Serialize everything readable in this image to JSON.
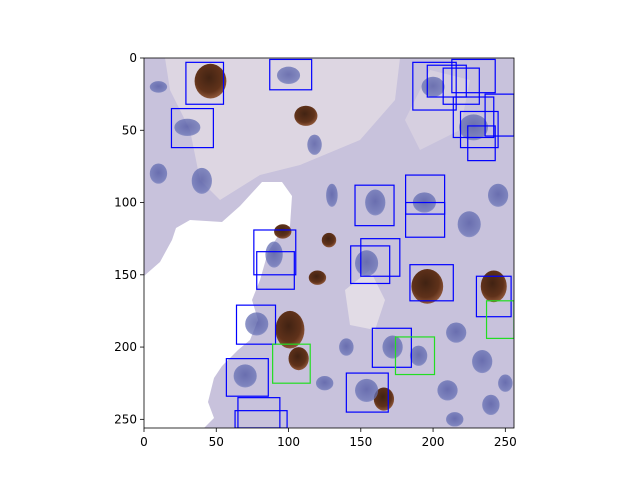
{
  "image": {
    "width": 256,
    "height": 256,
    "description_tag": "microscopy-tissue-patch",
    "colors": {
      "background_stain": "#c8c2dc",
      "empty_region": "#ffffff",
      "nucleus_blue": "#5a64a8",
      "nucleus_brown": "#5a2a10",
      "box_blue": "#0000ff",
      "box_green": "#22dd22"
    }
  },
  "axes": {
    "x_ticks": [
      "0",
      "50",
      "100",
      "150",
      "200",
      "250"
    ],
    "y_ticks": [
      "0",
      "50",
      "100",
      "150",
      "200",
      "250"
    ],
    "x_tick_values": [
      0,
      50,
      100,
      150,
      200,
      250
    ],
    "y_tick_values": [
      0,
      50,
      100,
      150,
      200,
      250
    ],
    "xlim": [
      0,
      256
    ],
    "ylim": [
      256,
      0
    ]
  },
  "annotations": [
    {
      "label": "blue",
      "x0": 29,
      "y0": 3,
      "x1": 55,
      "y1": 32
    },
    {
      "label": "blue",
      "x0": 87,
      "y0": 1,
      "x1": 116,
      "y1": 22
    },
    {
      "label": "blue",
      "x0": 19,
      "y0": 35,
      "x1": 48,
      "y1": 62
    },
    {
      "label": "blue",
      "x0": 186,
      "y0": 3,
      "x1": 216,
      "y1": 36
    },
    {
      "label": "blue",
      "x0": 196,
      "y0": 5,
      "x1": 223,
      "y1": 27
    },
    {
      "label": "blue",
      "x0": 207,
      "y0": 7,
      "x1": 232,
      "y1": 32
    },
    {
      "label": "blue",
      "x0": 213,
      "y0": 1,
      "x1": 243,
      "y1": 24
    },
    {
      "label": "blue",
      "x0": 214,
      "y0": 27,
      "x1": 242,
      "y1": 55
    },
    {
      "label": "blue",
      "x0": 219,
      "y0": 37,
      "x1": 245,
      "y1": 62
    },
    {
      "label": "blue",
      "x0": 224,
      "y0": 47,
      "x1": 243,
      "y1": 71
    },
    {
      "label": "blue",
      "x0": 236,
      "y0": 25,
      "x1": 256,
      "y1": 54
    },
    {
      "label": "blue",
      "x0": 146,
      "y0": 88,
      "x1": 173,
      "y1": 116
    },
    {
      "label": "blue",
      "x0": 181,
      "y0": 81,
      "x1": 208,
      "y1": 108
    },
    {
      "label": "blue",
      "x0": 181,
      "y0": 100,
      "x1": 208,
      "y1": 124
    },
    {
      "label": "blue",
      "x0": 76,
      "y0": 119,
      "x1": 105,
      "y1": 150
    },
    {
      "label": "blue",
      "x0": 78,
      "y0": 134,
      "x1": 104,
      "y1": 160
    },
    {
      "label": "blue",
      "x0": 143,
      "y0": 130,
      "x1": 170,
      "y1": 156
    },
    {
      "label": "blue",
      "x0": 150,
      "y0": 125,
      "x1": 177,
      "y1": 151
    },
    {
      "label": "blue",
      "x0": 184,
      "y0": 143,
      "x1": 214,
      "y1": 168
    },
    {
      "label": "blue",
      "x0": 230,
      "y0": 151,
      "x1": 254,
      "y1": 179
    },
    {
      "label": "blue",
      "x0": 64,
      "y0": 171,
      "x1": 91,
      "y1": 198
    },
    {
      "label": "blue",
      "x0": 158,
      "y0": 187,
      "x1": 185,
      "y1": 214
    },
    {
      "label": "blue",
      "x0": 57,
      "y0": 208,
      "x1": 86,
      "y1": 234
    },
    {
      "label": "blue",
      "x0": 140,
      "y0": 218,
      "x1": 169,
      "y1": 245
    },
    {
      "label": "blue",
      "x0": 65,
      "y0": 235,
      "x1": 94,
      "y1": 256
    },
    {
      "label": "blue",
      "x0": 63,
      "y0": 244,
      "x1": 99,
      "y1": 256
    },
    {
      "label": "green",
      "x0": 89,
      "y0": 198,
      "x1": 115,
      "y1": 225
    },
    {
      "label": "green",
      "x0": 174,
      "y0": 193,
      "x1": 201,
      "y1": 219
    },
    {
      "label": "green",
      "x0": 237,
      "y0": 168,
      "x1": 256,
      "y1": 194
    }
  ],
  "nuclei": [
    {
      "type": "brown",
      "x": 46,
      "y": 16,
      "rx": 11,
      "ry": 12
    },
    {
      "type": "brown",
      "x": 112,
      "y": 40,
      "rx": 8,
      "ry": 7
    },
    {
      "type": "brown",
      "x": 196,
      "y": 158,
      "rx": 11,
      "ry": 12
    },
    {
      "type": "brown",
      "x": 242,
      "y": 158,
      "rx": 9,
      "ry": 11
    },
    {
      "type": "brown",
      "x": 101,
      "y": 188,
      "rx": 10,
      "ry": 13
    },
    {
      "type": "brown",
      "x": 107,
      "y": 208,
      "rx": 7,
      "ry": 8
    },
    {
      "type": "brown",
      "x": 166,
      "y": 236,
      "rx": 7,
      "ry": 8
    },
    {
      "type": "brown",
      "x": 96,
      "y": 120,
      "rx": 6,
      "ry": 5
    },
    {
      "type": "brown",
      "x": 128,
      "y": 126,
      "rx": 5,
      "ry": 5
    },
    {
      "type": "brown",
      "x": 120,
      "y": 152,
      "rx": 6,
      "ry": 5
    },
    {
      "type": "blue",
      "x": 100,
      "y": 12,
      "rx": 8,
      "ry": 6
    },
    {
      "type": "blue",
      "x": 30,
      "y": 48,
      "rx": 9,
      "ry": 6
    },
    {
      "type": "blue",
      "x": 10,
      "y": 20,
      "rx": 6,
      "ry": 4
    },
    {
      "type": "blue",
      "x": 200,
      "y": 20,
      "rx": 8,
      "ry": 7
    },
    {
      "type": "blue",
      "x": 228,
      "y": 48,
      "rx": 10,
      "ry": 9
    },
    {
      "type": "blue",
      "x": 160,
      "y": 100,
      "rx": 7,
      "ry": 9
    },
    {
      "type": "blue",
      "x": 194,
      "y": 100,
      "rx": 8,
      "ry": 7
    },
    {
      "type": "blue",
      "x": 154,
      "y": 142,
      "rx": 8,
      "ry": 9
    },
    {
      "type": "blue",
      "x": 90,
      "y": 136,
      "rx": 6,
      "ry": 9
    },
    {
      "type": "blue",
      "x": 78,
      "y": 184,
      "rx": 8,
      "ry": 8
    },
    {
      "type": "blue",
      "x": 172,
      "y": 200,
      "rx": 7,
      "ry": 8
    },
    {
      "type": "blue",
      "x": 70,
      "y": 220,
      "rx": 8,
      "ry": 8
    },
    {
      "type": "blue",
      "x": 154,
      "y": 230,
      "rx": 8,
      "ry": 8
    },
    {
      "type": "blue",
      "x": 190,
      "y": 206,
      "rx": 6,
      "ry": 7
    },
    {
      "type": "blue",
      "x": 216,
      "y": 190,
      "rx": 7,
      "ry": 7
    },
    {
      "type": "blue",
      "x": 234,
      "y": 210,
      "rx": 7,
      "ry": 8
    },
    {
      "type": "blue",
      "x": 210,
      "y": 230,
      "rx": 7,
      "ry": 7
    },
    {
      "type": "blue",
      "x": 240,
      "y": 240,
      "rx": 6,
      "ry": 7
    },
    {
      "type": "blue",
      "x": 40,
      "y": 85,
      "rx": 7,
      "ry": 9
    },
    {
      "type": "blue",
      "x": 10,
      "y": 80,
      "rx": 6,
      "ry": 7
    },
    {
      "type": "blue",
      "x": 130,
      "y": 95,
      "rx": 4,
      "ry": 8
    },
    {
      "type": "blue",
      "x": 118,
      "y": 60,
      "rx": 5,
      "ry": 7
    },
    {
      "type": "blue",
      "x": 225,
      "y": 115,
      "rx": 8,
      "ry": 9
    },
    {
      "type": "blue",
      "x": 245,
      "y": 95,
      "rx": 7,
      "ry": 8
    },
    {
      "type": "blue",
      "x": 250,
      "y": 225,
      "rx": 5,
      "ry": 6
    },
    {
      "type": "blue",
      "x": 215,
      "y": 250,
      "rx": 6,
      "ry": 5
    },
    {
      "type": "blue",
      "x": 125,
      "y": 225,
      "rx": 6,
      "ry": 5
    },
    {
      "type": "blue",
      "x": 140,
      "y": 200,
      "rx": 5,
      "ry": 6
    }
  ]
}
